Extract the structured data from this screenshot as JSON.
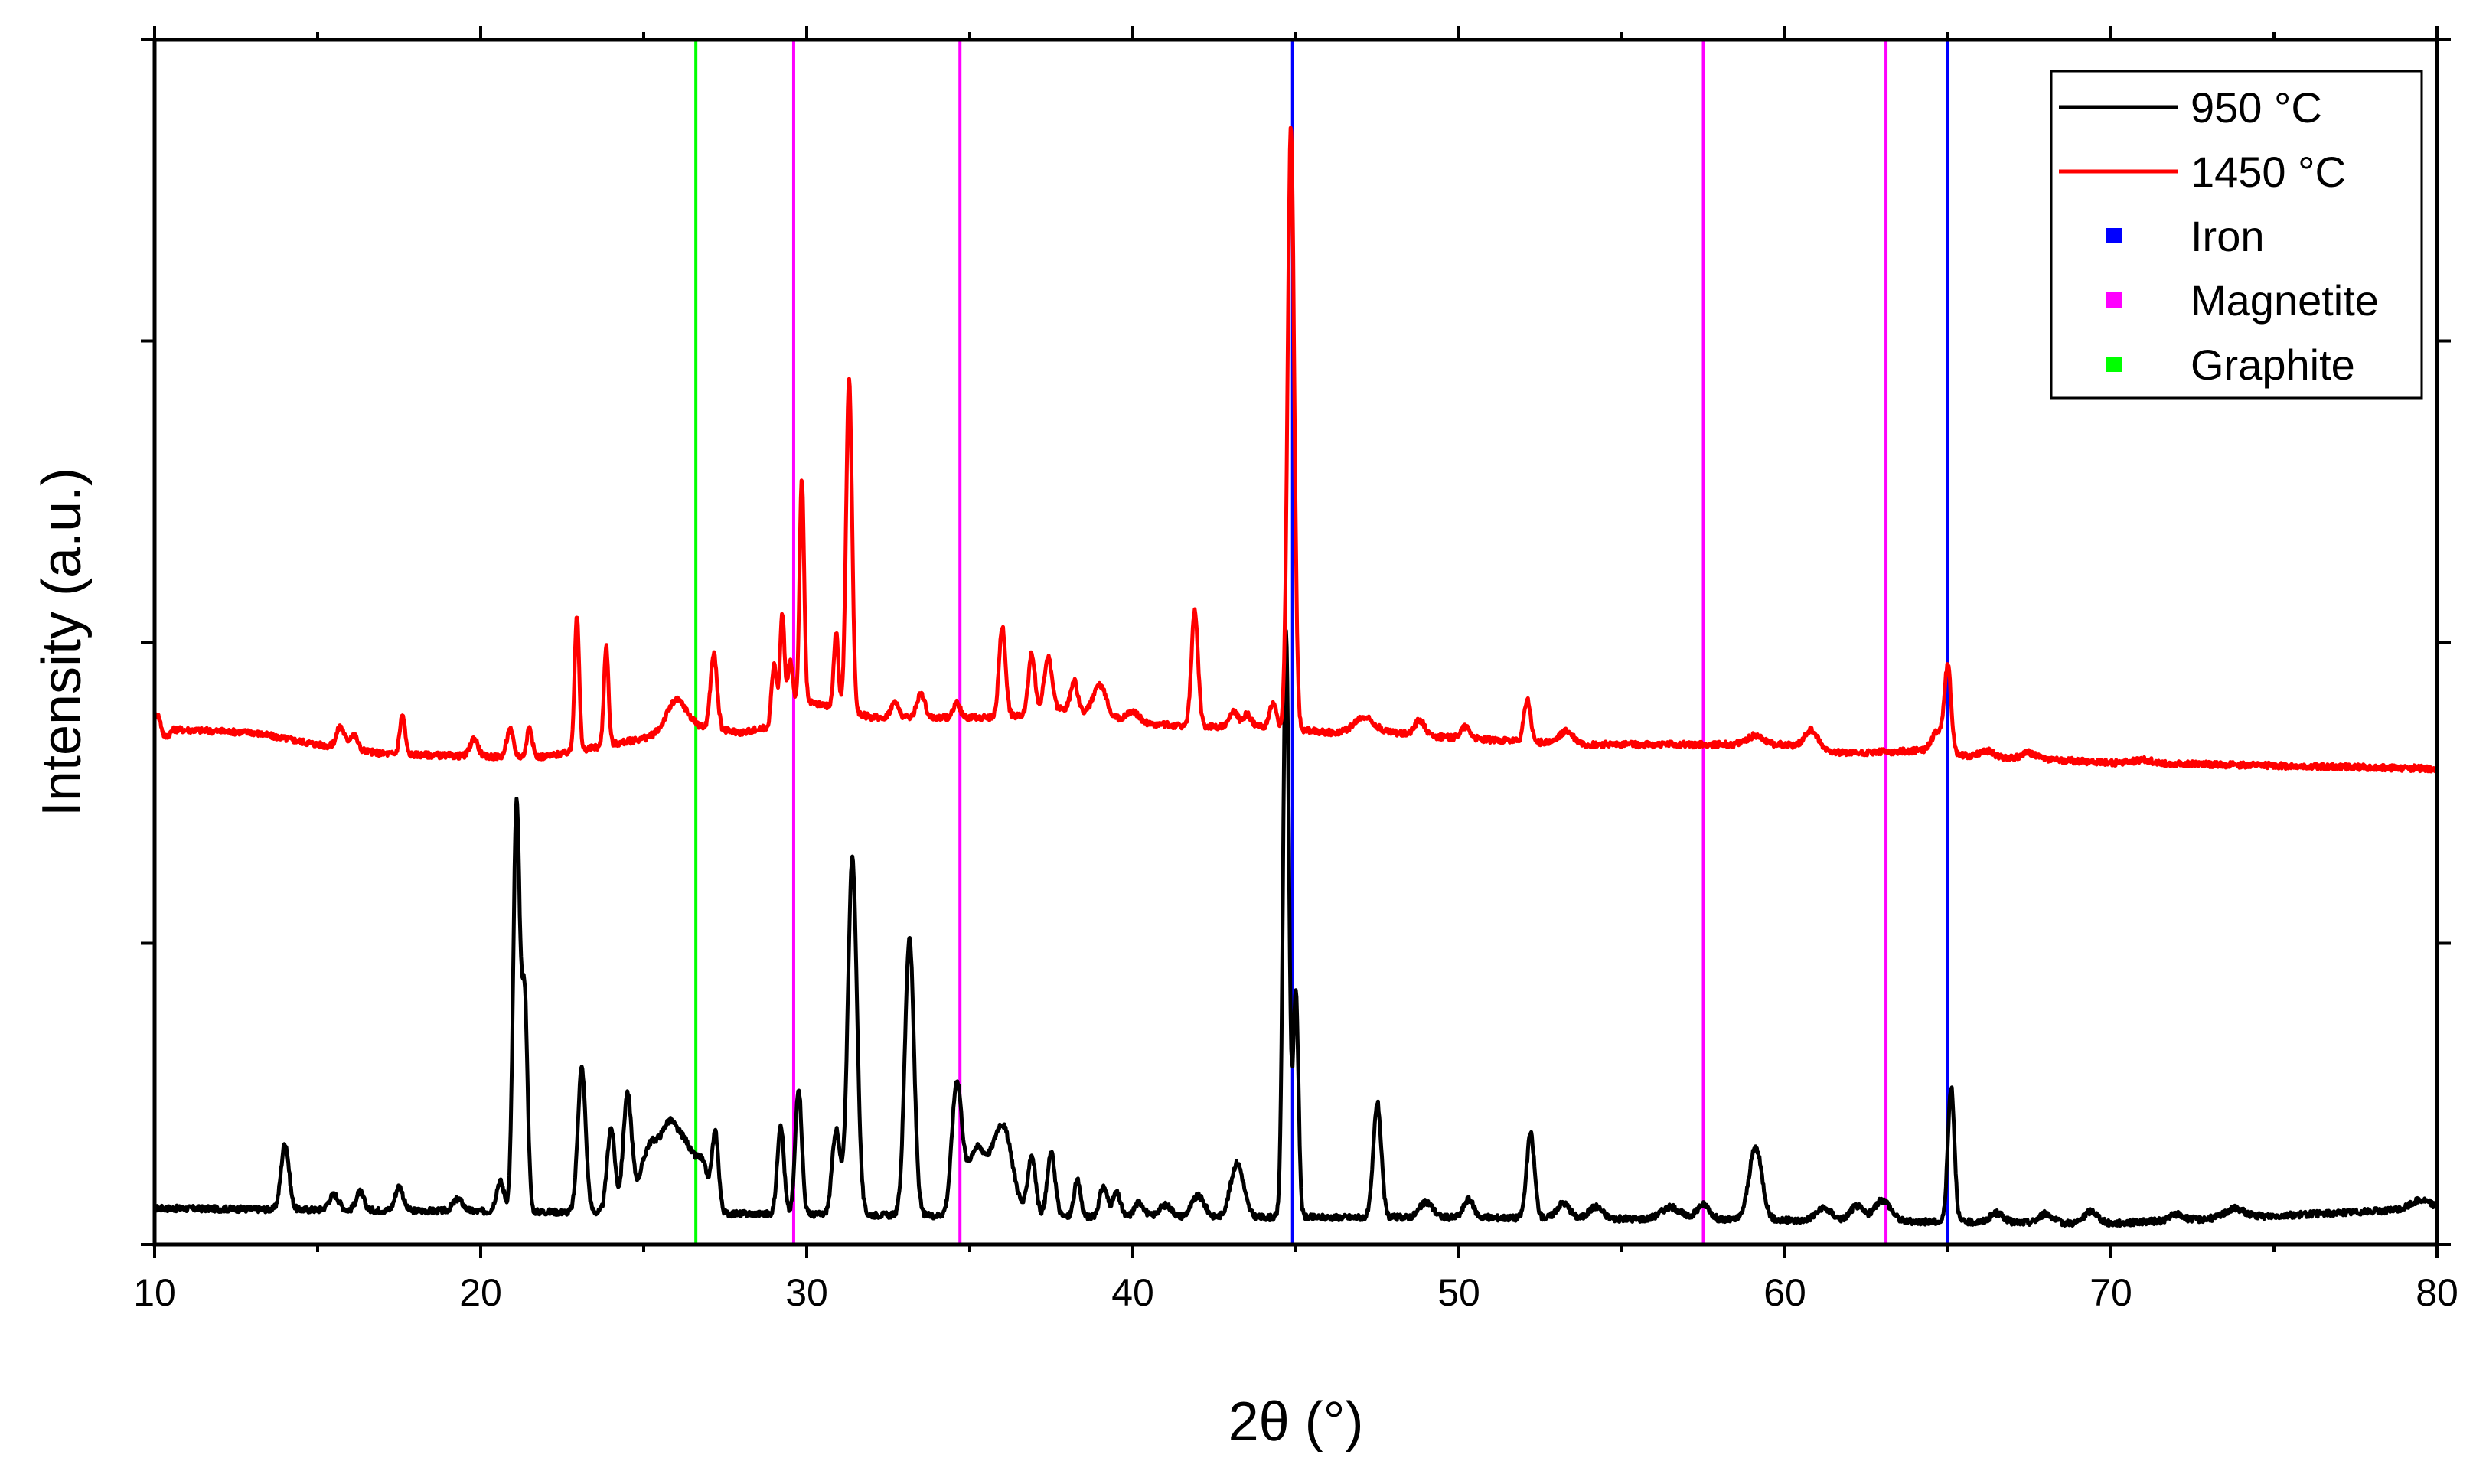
{
  "chart_data": {
    "type": "line",
    "xlabel": "2θ (°)",
    "ylabel": "Intensity (a.u.)",
    "xlim": [
      10,
      80
    ],
    "ylim": [
      0,
      4
    ],
    "xticks": [
      "10",
      "20",
      "30",
      "40",
      "50",
      "60",
      "70",
      "80"
    ],
    "y_tick_labels_shown": false,
    "grid": false,
    "legend_position": "top-right",
    "legend": [
      {
        "label": "950 °C",
        "symbol": "line",
        "color": "#000000"
      },
      {
        "label": "1450 °C",
        "symbol": "line",
        "color": "#ff0000"
      },
      {
        "label": "Iron",
        "symbol": "square",
        "color": "#0000ff"
      },
      {
        "label": "Magnetite",
        "symbol": "square",
        "color": "#ff00ff"
      },
      {
        "label": "Graphite",
        "symbol": "square",
        "color": "#00ff00"
      }
    ],
    "reference_lines": [
      {
        "name": "Iron",
        "color": "#0000ff",
        "positions": [
          44.9,
          65.0
        ]
      },
      {
        "name": "Magnetite",
        "color": "#ff00ff",
        "positions": [
          29.6,
          34.7,
          57.5,
          63.1
        ]
      },
      {
        "name": "Graphite",
        "color": "#00ff00",
        "positions": [
          26.6
        ]
      }
    ],
    "series": [
      {
        "name": "950 °C",
        "color": "#000000",
        "baseline": [
          [
            10,
            0.12
          ],
          [
            20,
            0.11
          ],
          [
            30,
            0.1
          ],
          [
            40,
            0.09
          ],
          [
            50,
            0.09
          ],
          [
            60,
            0.08
          ],
          [
            70,
            0.07
          ],
          [
            80,
            0.12
          ]
        ],
        "peaks": [
          [
            14.0,
            0.22,
            0.12
          ],
          [
            15.5,
            0.05,
            0.15
          ],
          [
            16.3,
            0.06,
            0.12
          ],
          [
            17.5,
            0.08,
            0.12
          ],
          [
            19.3,
            0.04,
            0.15
          ],
          [
            20.6,
            0.1,
            0.12
          ],
          [
            21.1,
            1.35,
            0.1
          ],
          [
            21.35,
            0.7,
            0.09
          ],
          [
            23.1,
            0.48,
            0.12
          ],
          [
            24.0,
            0.28,
            0.12
          ],
          [
            24.5,
            0.38,
            0.13
          ],
          [
            25.2,
            0.22,
            0.3
          ],
          [
            25.8,
            0.25,
            0.25
          ],
          [
            26.3,
            0.2,
            0.25
          ],
          [
            26.8,
            0.15,
            0.2
          ],
          [
            27.2,
            0.25,
            0.1
          ],
          [
            29.2,
            0.3,
            0.1
          ],
          [
            29.75,
            0.42,
            0.1
          ],
          [
            30.9,
            0.28,
            0.12
          ],
          [
            31.4,
            1.18,
            0.14
          ],
          [
            33.15,
            0.92,
            0.14
          ],
          [
            34.6,
            0.42,
            0.15
          ],
          [
            35.2,
            0.22,
            0.3
          ],
          [
            36.0,
            0.3,
            0.3
          ],
          [
            36.9,
            0.2,
            0.12
          ],
          [
            37.5,
            0.21,
            0.12
          ],
          [
            38.3,
            0.12,
            0.1
          ],
          [
            39.1,
            0.1,
            0.12
          ],
          [
            39.5,
            0.08,
            0.12
          ],
          [
            40.2,
            0.05,
            0.15
          ],
          [
            41.0,
            0.04,
            0.2
          ],
          [
            42.0,
            0.07,
            0.2
          ],
          [
            43.2,
            0.18,
            0.2
          ],
          [
            44.7,
            1.95,
            0.09
          ],
          [
            45.0,
            0.75,
            0.08
          ],
          [
            47.5,
            0.38,
            0.12
          ],
          [
            49.0,
            0.05,
            0.2
          ],
          [
            50.3,
            0.06,
            0.15
          ],
          [
            52.2,
            0.28,
            0.12
          ],
          [
            53.2,
            0.05,
            0.2
          ],
          [
            54.2,
            0.04,
            0.2
          ],
          [
            56.5,
            0.04,
            0.3
          ],
          [
            57.5,
            0.05,
            0.2
          ],
          [
            59.1,
            0.24,
            0.2
          ],
          [
            61.2,
            0.04,
            0.25
          ],
          [
            62.2,
            0.05,
            0.2
          ],
          [
            63.0,
            0.07,
            0.25
          ],
          [
            65.1,
            0.45,
            0.1
          ],
          [
            66.5,
            0.03,
            0.2
          ],
          [
            68.0,
            0.03,
            0.2
          ],
          [
            69.4,
            0.04,
            0.2
          ],
          [
            72.0,
            0.02,
            0.2
          ],
          [
            73.8,
            0.03,
            0.3
          ],
          [
            79.5,
            0.03,
            0.3
          ]
        ]
      },
      {
        "name": "1450 °C",
        "color": "#ff0000",
        "baseline": [
          [
            10,
            1.72
          ],
          [
            10.3,
            1.68
          ],
          [
            10.6,
            1.71
          ],
          [
            13,
            1.7
          ],
          [
            15,
            1.66
          ],
          [
            17,
            1.63
          ],
          [
            20,
            1.62
          ],
          [
            22,
            1.62
          ],
          [
            25,
            1.68
          ],
          [
            26.5,
            1.72
          ],
          [
            28,
            1.7
          ],
          [
            29,
            1.72
          ],
          [
            30,
            1.8
          ],
          [
            31,
            1.78
          ],
          [
            32,
            1.75
          ],
          [
            34,
            1.75
          ],
          [
            36,
            1.75
          ],
          [
            38,
            1.78
          ],
          [
            40,
            1.73
          ],
          [
            42,
            1.72
          ],
          [
            44,
            1.72
          ],
          [
            46,
            1.7
          ],
          [
            48,
            1.7
          ],
          [
            50,
            1.68
          ],
          [
            52,
            1.67
          ],
          [
            54,
            1.66
          ],
          [
            56,
            1.66
          ],
          [
            58,
            1.66
          ],
          [
            60,
            1.66
          ],
          [
            62,
            1.63
          ],
          [
            64,
            1.64
          ],
          [
            66,
            1.62
          ],
          [
            70,
            1.6
          ],
          [
            75,
            1.59
          ],
          [
            80,
            1.58
          ]
        ],
        "peaks": [
          [
            10.1,
            0.05,
            0.1
          ],
          [
            15.7,
            0.07,
            0.12
          ],
          [
            16.1,
            0.05,
            0.12
          ],
          [
            17.6,
            0.13,
            0.08
          ],
          [
            19.8,
            0.06,
            0.12
          ],
          [
            20.9,
            0.09,
            0.1
          ],
          [
            21.5,
            0.1,
            0.08
          ],
          [
            22.95,
            0.45,
            0.07
          ],
          [
            23.85,
            0.33,
            0.07
          ],
          [
            26.0,
            0.1,
            0.3
          ],
          [
            27.15,
            0.25,
            0.1
          ],
          [
            29.0,
            0.2,
            0.08
          ],
          [
            29.25,
            0.35,
            0.07
          ],
          [
            29.5,
            0.18,
            0.08
          ],
          [
            29.85,
            0.75,
            0.07
          ],
          [
            30.9,
            0.25,
            0.07
          ],
          [
            31.3,
            1.1,
            0.09
          ],
          [
            32.7,
            0.05,
            0.12
          ],
          [
            33.5,
            0.08,
            0.12
          ],
          [
            34.6,
            0.05,
            0.1
          ],
          [
            36.0,
            0.3,
            0.1
          ],
          [
            36.9,
            0.2,
            0.1
          ],
          [
            37.4,
            0.18,
            0.12
          ],
          [
            38.2,
            0.1,
            0.1
          ],
          [
            39.0,
            0.1,
            0.2
          ],
          [
            40.0,
            0.04,
            0.2
          ],
          [
            41.9,
            0.38,
            0.1
          ],
          [
            43.1,
            0.05,
            0.12
          ],
          [
            43.5,
            0.04,
            0.12
          ],
          [
            44.3,
            0.08,
            0.1
          ],
          [
            44.85,
            2.0,
            0.1
          ],
          [
            47.1,
            0.05,
            0.3
          ],
          [
            48.8,
            0.05,
            0.15
          ],
          [
            50.2,
            0.04,
            0.15
          ],
          [
            52.1,
            0.14,
            0.1
          ],
          [
            53.3,
            0.04,
            0.2
          ],
          [
            59.1,
            0.03,
            0.25
          ],
          [
            60.8,
            0.06,
            0.2
          ],
          [
            65.0,
            0.27,
            0.1
          ],
          [
            64.7,
            0.07,
            0.2
          ],
          [
            66.2,
            0.02,
            0.2
          ],
          [
            67.5,
            0.02,
            0.2
          ],
          [
            71.0,
            0.01,
            0.3
          ]
        ]
      }
    ]
  }
}
